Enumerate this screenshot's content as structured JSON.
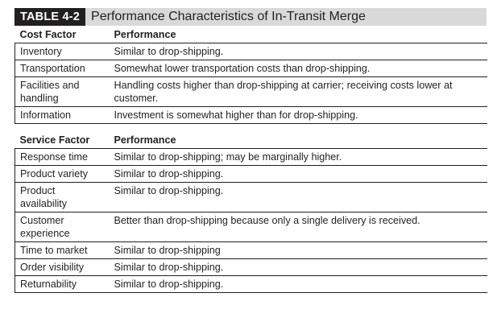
{
  "title": {
    "tag": "TABLE 4-2",
    "text": "Performance Characteristics of In-Transit Merge"
  },
  "cost_section": {
    "header_factor": "Cost Factor",
    "header_performance": "Performance",
    "rows": [
      {
        "factor": "Inventory",
        "performance": "Similar to drop-shipping."
      },
      {
        "factor": "Transportation",
        "performance": "Somewhat lower transportation costs than drop-shipping."
      },
      {
        "factor": "Facilities and handling",
        "performance": "Handling costs higher than drop-shipping at carrier; receiving costs lower at customer."
      },
      {
        "factor": "Information",
        "performance": "Investment is somewhat higher than for drop-shipping."
      }
    ]
  },
  "service_section": {
    "header_factor": "Service Factor",
    "header_performance": "Performance",
    "rows": [
      {
        "factor": "Response time",
        "performance": "Similar to drop-shipping; may be marginally higher."
      },
      {
        "factor": "Product variety",
        "performance": "Similar to drop-shipping."
      },
      {
        "factor": "Product availability",
        "performance": "Similar to drop-shipping."
      },
      {
        "factor": "Customer experience",
        "performance": "Better than drop-shipping because only a single delivery is received."
      },
      {
        "factor": "Time to market",
        "performance": "Similar to drop-shipping"
      },
      {
        "factor": "Order visibility",
        "performance": "Similar to drop-shipping."
      },
      {
        "factor": "Returnability",
        "performance": "Similar to drop-shipping."
      }
    ]
  }
}
